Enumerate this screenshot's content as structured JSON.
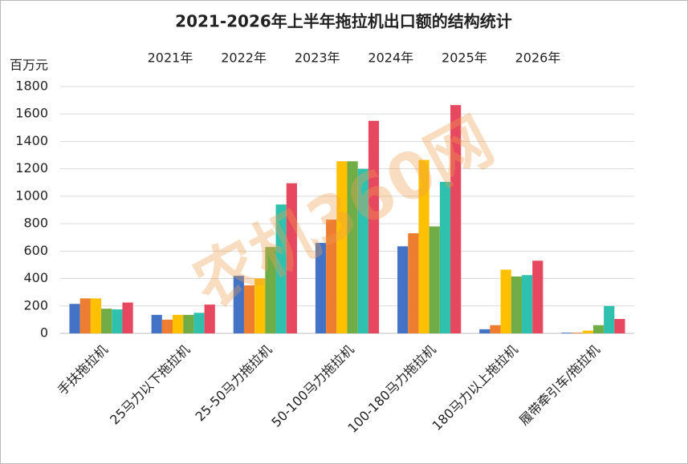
{
  "chart_data": {
    "type": "bar",
    "title": "2021-2026年上半年拖拉机出口额的结构统计",
    "y_label": "百万元",
    "watermark": "农机360网",
    "categories": [
      "手扶拖拉机",
      "25马力以下拖拉机",
      "25-50马力拖拉机",
      "50-100马力拖拉机",
      "100-180马力拖拉机",
      "180马力以上拖拉机",
      "履带牵引车/拖拉机"
    ],
    "series": [
      {
        "name": "2021年",
        "color": "#4472c4",
        "values": [
          215,
          135,
          420,
          660,
          635,
          30,
          5
        ]
      },
      {
        "name": "2022年",
        "color": "#ed7d31",
        "values": [
          255,
          100,
          350,
          830,
          730,
          60,
          5
        ]
      },
      {
        "name": "2023年",
        "color": "#ffc000",
        "values": [
          255,
          135,
          400,
          1255,
          1265,
          465,
          20
        ]
      },
      {
        "name": "2024年",
        "color": "#70ad47",
        "values": [
          180,
          135,
          630,
          1255,
          780,
          415,
          60
        ]
      },
      {
        "name": "2025年",
        "color": "#30c0ae",
        "values": [
          175,
          150,
          940,
          1200,
          1105,
          425,
          200
        ]
      },
      {
        "name": "2026年",
        "color": "#e8485f",
        "values": [
          225,
          210,
          1095,
          1550,
          1665,
          530,
          105
        ]
      }
    ],
    "ylim": [
      0,
      1800
    ],
    "yticks": [
      0,
      200,
      400,
      600,
      800,
      1000,
      1200,
      1400,
      1600,
      1800
    ],
    "grid": true
  }
}
